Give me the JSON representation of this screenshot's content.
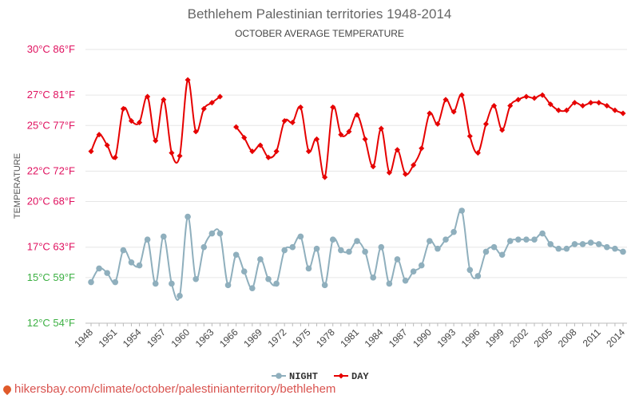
{
  "chart_data": {
    "type": "line",
    "title": "Bethlehem Palestinian territories 1948-2014",
    "subtitle": "OCTOBER AVERAGE TEMPERATURE",
    "ylabel": "TEMPERATURE",
    "ylim": [
      12,
      30
    ],
    "yticks": [
      {
        "value": 30,
        "label": "30°C 86°F",
        "color": "#e0115f"
      },
      {
        "value": 27,
        "label": "27°C 81°F",
        "color": "#e0115f"
      },
      {
        "value": 25,
        "label": "25°C 77°F",
        "color": "#e0115f"
      },
      {
        "value": 22,
        "label": "22°C 72°F",
        "color": "#e0115f"
      },
      {
        "value": 20,
        "label": "20°C 68°F",
        "color": "#e0115f"
      },
      {
        "value": 17,
        "label": "17°C 63°F",
        "color": "#e0115f"
      },
      {
        "value": 15,
        "label": "15°C 59°F",
        "color": "#3cb043"
      },
      {
        "value": 12,
        "label": "12°C 54°F",
        "color": "#3cb043"
      }
    ],
    "xticks": [
      "1948",
      "1951",
      "1954",
      "1957",
      "1960",
      "1963",
      "1966",
      "1969",
      "1972",
      "1975",
      "1978",
      "1981",
      "1984",
      "1987",
      "1990",
      "1993",
      "1996",
      "1999",
      "2002",
      "2005",
      "2008",
      "2011",
      "2014"
    ],
    "x": [
      1948,
      1949,
      1950,
      1951,
      1952,
      1953,
      1954,
      1955,
      1956,
      1957,
      1958,
      1959,
      1960,
      1961,
      1962,
      1963,
      1964,
      1965,
      1966,
      1967,
      1968,
      1969,
      1970,
      1971,
      1972,
      1973,
      1974,
      1975,
      1976,
      1977,
      1978,
      1979,
      1980,
      1981,
      1982,
      1983,
      1984,
      1985,
      1986,
      1987,
      1988,
      1989,
      1990,
      1991,
      1992,
      1993,
      1994,
      1995,
      1996,
      1997,
      1998,
      1999,
      2000,
      2001,
      2002,
      2003,
      2004,
      2005,
      2006,
      2007,
      2008,
      2009,
      2010,
      2011,
      2012,
      2013,
      2014
    ],
    "series": [
      {
        "name": "NIGHT",
        "color": "#8fafbd",
        "marker": "circle",
        "values": [
          14.7,
          15.6,
          15.3,
          14.7,
          16.8,
          16.0,
          15.8,
          17.5,
          14.6,
          17.7,
          14.6,
          13.8,
          19.0,
          14.9,
          17.0,
          17.9,
          17.9,
          14.5,
          16.5,
          15.4,
          14.3,
          16.2,
          14.9,
          14.6,
          16.8,
          17.0,
          17.7,
          15.6,
          16.9,
          14.5,
          17.5,
          16.8,
          16.7,
          17.4,
          16.7,
          15.0,
          17.0,
          14.6,
          16.2,
          14.8,
          15.4,
          15.8,
          17.4,
          16.9,
          17.5,
          18.0,
          19.4,
          15.5,
          15.1,
          16.7,
          17.0,
          16.5,
          17.4,
          17.5,
          17.5,
          17.5,
          17.9,
          17.2,
          16.9,
          16.9,
          17.2,
          17.2,
          17.3,
          17.2,
          17.0,
          16.9,
          16.7
        ]
      },
      {
        "name": "DAY",
        "color": "#e60000",
        "marker": "diamond",
        "values": [
          23.3,
          24.4,
          23.7,
          22.9,
          26.1,
          25.3,
          25.2,
          26.9,
          24.0,
          26.7,
          23.2,
          23.0,
          28.0,
          24.6,
          26.1,
          26.5,
          26.9,
          null,
          24.9,
          24.2,
          23.3,
          23.7,
          22.9,
          23.3,
          25.3,
          25.2,
          26.2,
          23.3,
          24.1,
          21.6,
          26.2,
          24.4,
          24.6,
          25.7,
          24.1,
          22.3,
          24.8,
          21.9,
          23.4,
          21.8,
          22.4,
          23.5,
          25.8,
          25.1,
          26.7,
          25.9,
          27.0,
          24.3,
          23.2,
          25.1,
          26.3,
          24.7,
          26.3,
          26.7,
          26.9,
          26.8,
          27.0,
          26.4,
          26.0,
          26.0,
          26.5,
          26.3,
          26.5,
          26.5,
          26.3,
          26.0,
          25.8
        ]
      }
    ],
    "legend": {
      "position": "bottom",
      "items": [
        "NIGHT",
        "DAY"
      ]
    },
    "grid": true
  },
  "footer": {
    "text": "hikersbay.com/climate/october/palestinianterritory/bethlehem"
  }
}
